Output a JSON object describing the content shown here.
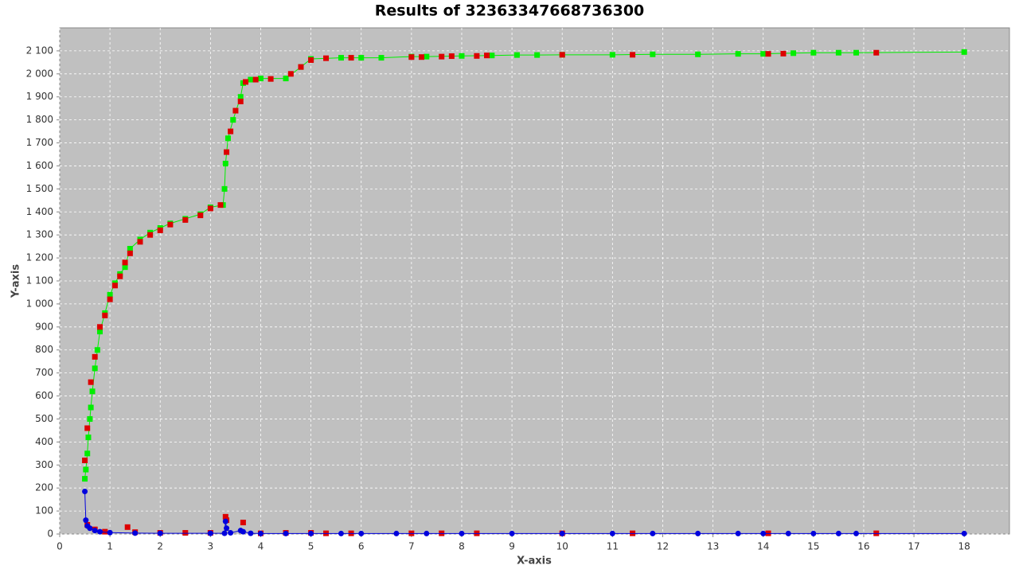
{
  "chart_data": {
    "type": "scatter",
    "title": "Results of 32363347668736300",
    "x_label": "X-axis",
    "y_label": "Y-axis",
    "xlim": [
      0,
      18.9
    ],
    "ylim": [
      0,
      2200
    ],
    "xticks": [
      0,
      1,
      2,
      3,
      4,
      5,
      6,
      7,
      8,
      9,
      10,
      11,
      12,
      13,
      14,
      15,
      16,
      17,
      18
    ],
    "yticks": [
      0,
      100,
      200,
      300,
      400,
      500,
      600,
      700,
      800,
      900,
      {
        "value": 1000,
        "label": "1 000"
      },
      {
        "value": 1100,
        "label": "1 100"
      },
      {
        "value": 1200,
        "label": "1 200"
      },
      {
        "value": 1300,
        "label": "1 300"
      },
      {
        "value": 1400,
        "label": "1 400"
      },
      {
        "value": 1500,
        "label": "1 500"
      },
      {
        "value": 1600,
        "label": "1 600"
      },
      {
        "value": 1700,
        "label": "1 700"
      },
      {
        "value": 1800,
        "label": "1 800"
      },
      {
        "value": 1900,
        "label": "1 900"
      },
      {
        "value": 2000,
        "label": "2 000"
      },
      {
        "value": 2100,
        "label": "2 100"
      }
    ],
    "grid": true,
    "series": [
      {
        "color": "#00ee00",
        "line": true,
        "marker": "square",
        "x": [
          0.5,
          0.52,
          0.55,
          0.57,
          0.6,
          0.62,
          0.65,
          0.7,
          0.75,
          0.8,
          0.9,
          1.0,
          1.1,
          1.2,
          1.3,
          1.4,
          1.6,
          1.8,
          2.0,
          2.2,
          2.5,
          2.8,
          3.0,
          3.25,
          3.28,
          3.3,
          3.35,
          3.45,
          3.6,
          3.65,
          3.8,
          4.0,
          4.5,
          4.8,
          5.0,
          5.6,
          6.0,
          6.4,
          7.0,
          7.3,
          8.0,
          8.6,
          9.1,
          9.5,
          10,
          11,
          11.8,
          12.7,
          13.5,
          14,
          14.6,
          15,
          15.5,
          15.85,
          18
        ],
        "values": [
          240,
          280,
          350,
          420,
          500,
          550,
          620,
          720,
          800,
          880,
          960,
          1040,
          1090,
          1130,
          1160,
          1240,
          1280,
          1310,
          1330,
          1350,
          1370,
          1390,
          1420,
          1430,
          1500,
          1610,
          1720,
          1800,
          1900,
          1960,
          1975,
          1980,
          1980,
          2030,
          2065,
          2070,
          2070,
          2070,
          2075,
          2075,
          2078,
          2080,
          2082,
          2082,
          2083,
          2083,
          2085,
          2085,
          2087,
          2087,
          2090,
          2092,
          2092,
          2092,
          2095
        ]
      },
      {
        "color": "#dd0000",
        "line": false,
        "marker": "square",
        "x": [
          0.5,
          0.55,
          0.62,
          0.7,
          0.8,
          0.9,
          1.0,
          1.1,
          1.2,
          1.3,
          1.4,
          1.6,
          1.8,
          2.0,
          2.2,
          2.5,
          2.8,
          3.0,
          3.2,
          3.32,
          3.4,
          3.5,
          3.6,
          3.7,
          3.9,
          4.2,
          4.6,
          4.8,
          5.0,
          5.3,
          5.8,
          7.0,
          7.2,
          7.6,
          7.8,
          8.3,
          8.5,
          10,
          11.4,
          14.1,
          14.4,
          16.25,
          0.55,
          0.7,
          0.9,
          1.35,
          1.5,
          2.0,
          2.5,
          3.0,
          3.3,
          3.32,
          3.65,
          4.0,
          4.5,
          5.0,
          5.3,
          5.8,
          7.0,
          7.6,
          8.3,
          10,
          11.4,
          14.1,
          16.25
        ],
        "values": [
          320,
          460,
          660,
          770,
          900,
          950,
          1020,
          1080,
          1120,
          1180,
          1220,
          1270,
          1300,
          1320,
          1345,
          1365,
          1385,
          1415,
          1430,
          1660,
          1750,
          1840,
          1880,
          1965,
          1975,
          1978,
          2000,
          2030,
          2060,
          2068,
          2070,
          2073,
          2073,
          2075,
          2077,
          2078,
          2080,
          2083,
          2083,
          2087,
          2088,
          2092,
          40,
          20,
          10,
          30,
          8,
          5,
          5,
          5,
          75,
          60,
          50,
          3,
          5,
          5,
          3,
          3,
          3,
          3,
          3,
          3,
          3,
          3,
          3
        ]
      },
      {
        "color": "#0000dd",
        "line": true,
        "marker": "circle",
        "x": [
          0.5,
          0.52,
          0.55,
          0.6,
          0.7,
          0.8,
          1.0,
          1.5,
          2.0,
          3.0,
          3.28,
          3.3,
          3.32,
          3.4,
          3.6,
          3.65,
          3.8,
          4.0,
          4.5,
          5,
          5.6,
          6,
          6.7,
          7.3,
          8,
          9,
          10,
          11,
          11.8,
          12.7,
          13.5,
          14,
          14.5,
          15,
          15.5,
          15.85,
          18
        ],
        "values": [
          185,
          60,
          35,
          25,
          15,
          10,
          6,
          4,
          3,
          3,
          3,
          55,
          25,
          5,
          15,
          10,
          3,
          2,
          2,
          2,
          2,
          2,
          2,
          2,
          2,
          2,
          2,
          2,
          2,
          2,
          2,
          2,
          2,
          2,
          2,
          2,
          2
        ]
      }
    ]
  }
}
